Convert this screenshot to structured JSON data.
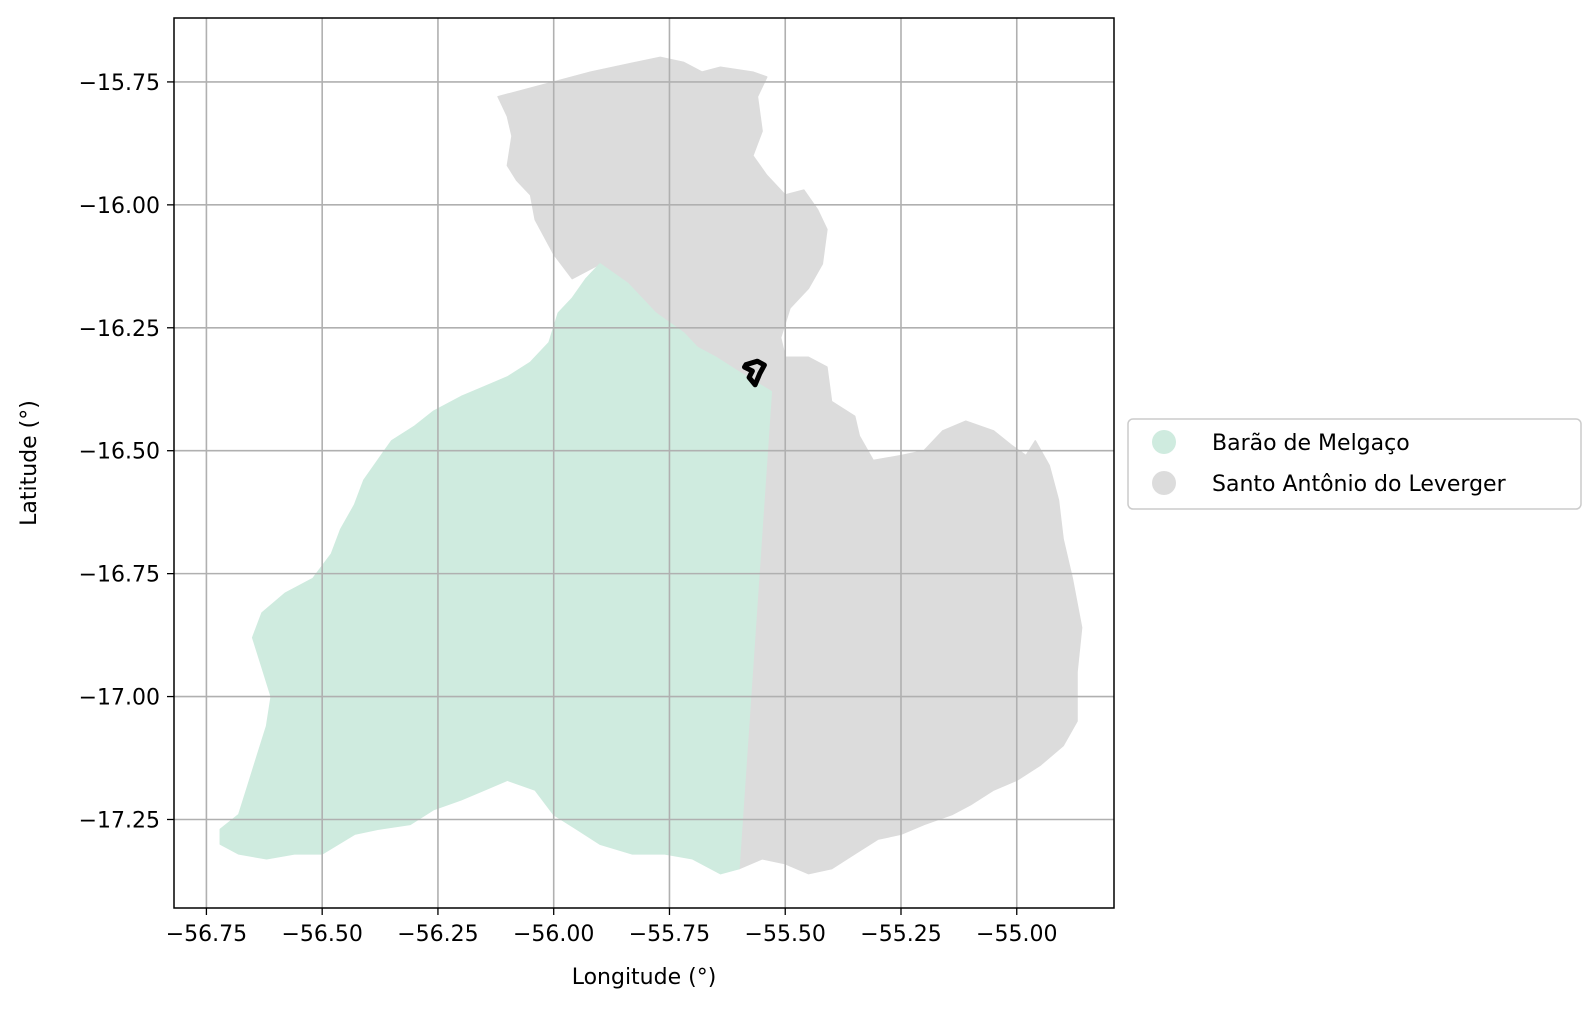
{
  "chart_data": {
    "type": "map",
    "xlabel": "Longitude (°)",
    "ylabel": "Latitude (°)",
    "xlim": [
      -56.82,
      -54.79
    ],
    "ylim": [
      -17.43,
      -15.62
    ],
    "grid": true,
    "x_ticks": [
      -56.75,
      -56.5,
      -56.25,
      -56.0,
      -55.75,
      -55.5,
      -55.25,
      -55.0
    ],
    "y_ticks": [
      -15.75,
      -16.0,
      -16.25,
      -16.5,
      -16.75,
      -17.0,
      -17.25
    ],
    "x_tick_labels": [
      "−56.75",
      "−56.50",
      "−56.25",
      "−56.00",
      "−55.75",
      "−55.50",
      "−55.25",
      "−55.00"
    ],
    "y_tick_labels": [
      "−15.75",
      "−16.00",
      "−16.25",
      "−16.50",
      "−16.75",
      "−17.00",
      "−17.25"
    ],
    "legend": {
      "placement": "right",
      "entries": [
        {
          "label": "Barão de Melgaço",
          "color": "#cfebdf"
        },
        {
          "label": "Santo Antônio do Leverger",
          "color": "#dcdcdc"
        }
      ]
    },
    "regions": [
      {
        "name": "Santo Antônio do Leverger",
        "color": "#dcdcdc",
        "outline": [
          [
            -56.08,
            -15.77
          ],
          [
            -55.92,
            -15.73
          ],
          [
            -55.77,
            -15.7
          ],
          [
            -55.72,
            -15.71
          ],
          [
            -55.68,
            -15.73
          ],
          [
            -55.64,
            -15.72
          ],
          [
            -55.57,
            -15.73
          ],
          [
            -55.54,
            -15.74
          ],
          [
            -55.56,
            -15.78
          ],
          [
            -55.55,
            -15.85
          ],
          [
            -55.57,
            -15.9
          ],
          [
            -55.54,
            -15.94
          ],
          [
            -55.5,
            -15.98
          ],
          [
            -55.46,
            -15.97
          ],
          [
            -55.43,
            -16.01
          ],
          [
            -55.41,
            -16.05
          ],
          [
            -55.42,
            -16.12
          ],
          [
            -55.45,
            -16.17
          ],
          [
            -55.49,
            -16.21
          ],
          [
            -55.51,
            -16.27
          ],
          [
            -55.5,
            -16.31
          ],
          [
            -55.45,
            -16.31
          ],
          [
            -55.41,
            -16.33
          ],
          [
            -55.4,
            -16.4
          ],
          [
            -55.35,
            -16.43
          ],
          [
            -55.34,
            -16.47
          ],
          [
            -55.31,
            -16.52
          ],
          [
            -55.25,
            -16.51
          ],
          [
            -55.2,
            -16.5
          ],
          [
            -55.16,
            -16.46
          ],
          [
            -55.11,
            -16.44
          ],
          [
            -55.05,
            -16.46
          ],
          [
            -55.01,
            -16.49
          ],
          [
            -54.98,
            -16.51
          ],
          [
            -54.96,
            -16.48
          ],
          [
            -54.93,
            -16.53
          ],
          [
            -54.91,
            -16.6
          ],
          [
            -54.9,
            -16.68
          ],
          [
            -54.88,
            -16.76
          ],
          [
            -54.86,
            -16.86
          ],
          [
            -54.87,
            -16.95
          ],
          [
            -54.87,
            -17.05
          ],
          [
            -54.9,
            -17.1
          ],
          [
            -54.95,
            -17.14
          ],
          [
            -55.0,
            -17.17
          ],
          [
            -55.05,
            -17.19
          ],
          [
            -55.1,
            -17.22
          ],
          [
            -55.14,
            -17.24
          ],
          [
            -55.2,
            -17.26
          ],
          [
            -55.25,
            -17.28
          ],
          [
            -55.3,
            -17.29
          ],
          [
            -55.35,
            -17.32
          ],
          [
            -55.4,
            -17.35
          ],
          [
            -55.45,
            -17.36
          ],
          [
            -55.5,
            -17.34
          ],
          [
            -55.55,
            -17.33
          ],
          [
            -55.6,
            -17.35
          ],
          [
            -55.53,
            -16.38
          ],
          [
            -55.6,
            -16.34
          ],
          [
            -55.65,
            -16.31
          ],
          [
            -55.69,
            -16.29
          ],
          [
            -55.72,
            -16.26
          ],
          [
            -55.78,
            -16.22
          ],
          [
            -55.84,
            -16.16
          ],
          [
            -55.9,
            -16.12
          ],
          [
            -55.92,
            -16.13
          ],
          [
            -55.96,
            -16.15
          ],
          [
            -56.0,
            -16.1
          ],
          [
            -56.04,
            -16.03
          ],
          [
            -56.05,
            -15.98
          ],
          [
            -56.08,
            -15.95
          ],
          [
            -56.1,
            -15.92
          ],
          [
            -56.09,
            -15.86
          ],
          [
            -56.1,
            -15.82
          ],
          [
            -56.12,
            -15.78
          ]
        ]
      },
      {
        "name": "Barão de Melgaço",
        "color": "#cfebdf",
        "outline": [
          [
            -55.9,
            -16.12
          ],
          [
            -55.84,
            -16.16
          ],
          [
            -55.78,
            -16.22
          ],
          [
            -55.72,
            -16.26
          ],
          [
            -55.69,
            -16.29
          ],
          [
            -55.65,
            -16.31
          ],
          [
            -55.6,
            -16.34
          ],
          [
            -55.53,
            -16.38
          ],
          [
            -55.6,
            -17.35
          ],
          [
            -55.64,
            -17.36
          ],
          [
            -55.7,
            -17.33
          ],
          [
            -55.76,
            -17.32
          ],
          [
            -55.83,
            -17.32
          ],
          [
            -55.9,
            -17.3
          ],
          [
            -55.95,
            -17.27
          ],
          [
            -56.0,
            -17.24
          ],
          [
            -56.04,
            -17.19
          ],
          [
            -56.1,
            -17.17
          ],
          [
            -56.15,
            -17.19
          ],
          [
            -56.2,
            -17.21
          ],
          [
            -56.26,
            -17.23
          ],
          [
            -56.31,
            -17.26
          ],
          [
            -56.38,
            -17.27
          ],
          [
            -56.43,
            -17.28
          ],
          [
            -56.5,
            -17.32
          ],
          [
            -56.56,
            -17.32
          ],
          [
            -56.62,
            -17.33
          ],
          [
            -56.68,
            -17.32
          ],
          [
            -56.72,
            -17.3
          ],
          [
            -56.72,
            -17.27
          ],
          [
            -56.68,
            -17.24
          ],
          [
            -56.66,
            -17.18
          ],
          [
            -56.64,
            -17.12
          ],
          [
            -56.62,
            -17.06
          ],
          [
            -56.61,
            -17.0
          ],
          [
            -56.63,
            -16.94
          ],
          [
            -56.65,
            -16.88
          ],
          [
            -56.63,
            -16.83
          ],
          [
            -56.58,
            -16.79
          ],
          [
            -56.52,
            -16.76
          ],
          [
            -56.48,
            -16.71
          ],
          [
            -56.46,
            -16.66
          ],
          [
            -56.43,
            -16.61
          ],
          [
            -56.41,
            -16.56
          ],
          [
            -56.38,
            -16.52
          ],
          [
            -56.35,
            -16.48
          ],
          [
            -56.3,
            -16.45
          ],
          [
            -56.26,
            -16.42
          ],
          [
            -56.2,
            -16.39
          ],
          [
            -56.15,
            -16.37
          ],
          [
            -56.1,
            -16.35
          ],
          [
            -56.05,
            -16.32
          ],
          [
            -56.01,
            -16.28
          ],
          [
            -55.99,
            -16.22
          ],
          [
            -55.96,
            -16.19
          ],
          [
            -55.93,
            -16.15
          ]
        ]
      }
    ],
    "marked_area": {
      "outline": [
        [
          -55.585,
          -16.325
        ],
        [
          -55.56,
          -16.318
        ],
        [
          -55.545,
          -16.326
        ],
        [
          -55.555,
          -16.343
        ],
        [
          -55.565,
          -16.366
        ],
        [
          -55.578,
          -16.351
        ],
        [
          -55.571,
          -16.338
        ],
        [
          -55.588,
          -16.33
        ]
      ],
      "color": "#000000"
    }
  }
}
